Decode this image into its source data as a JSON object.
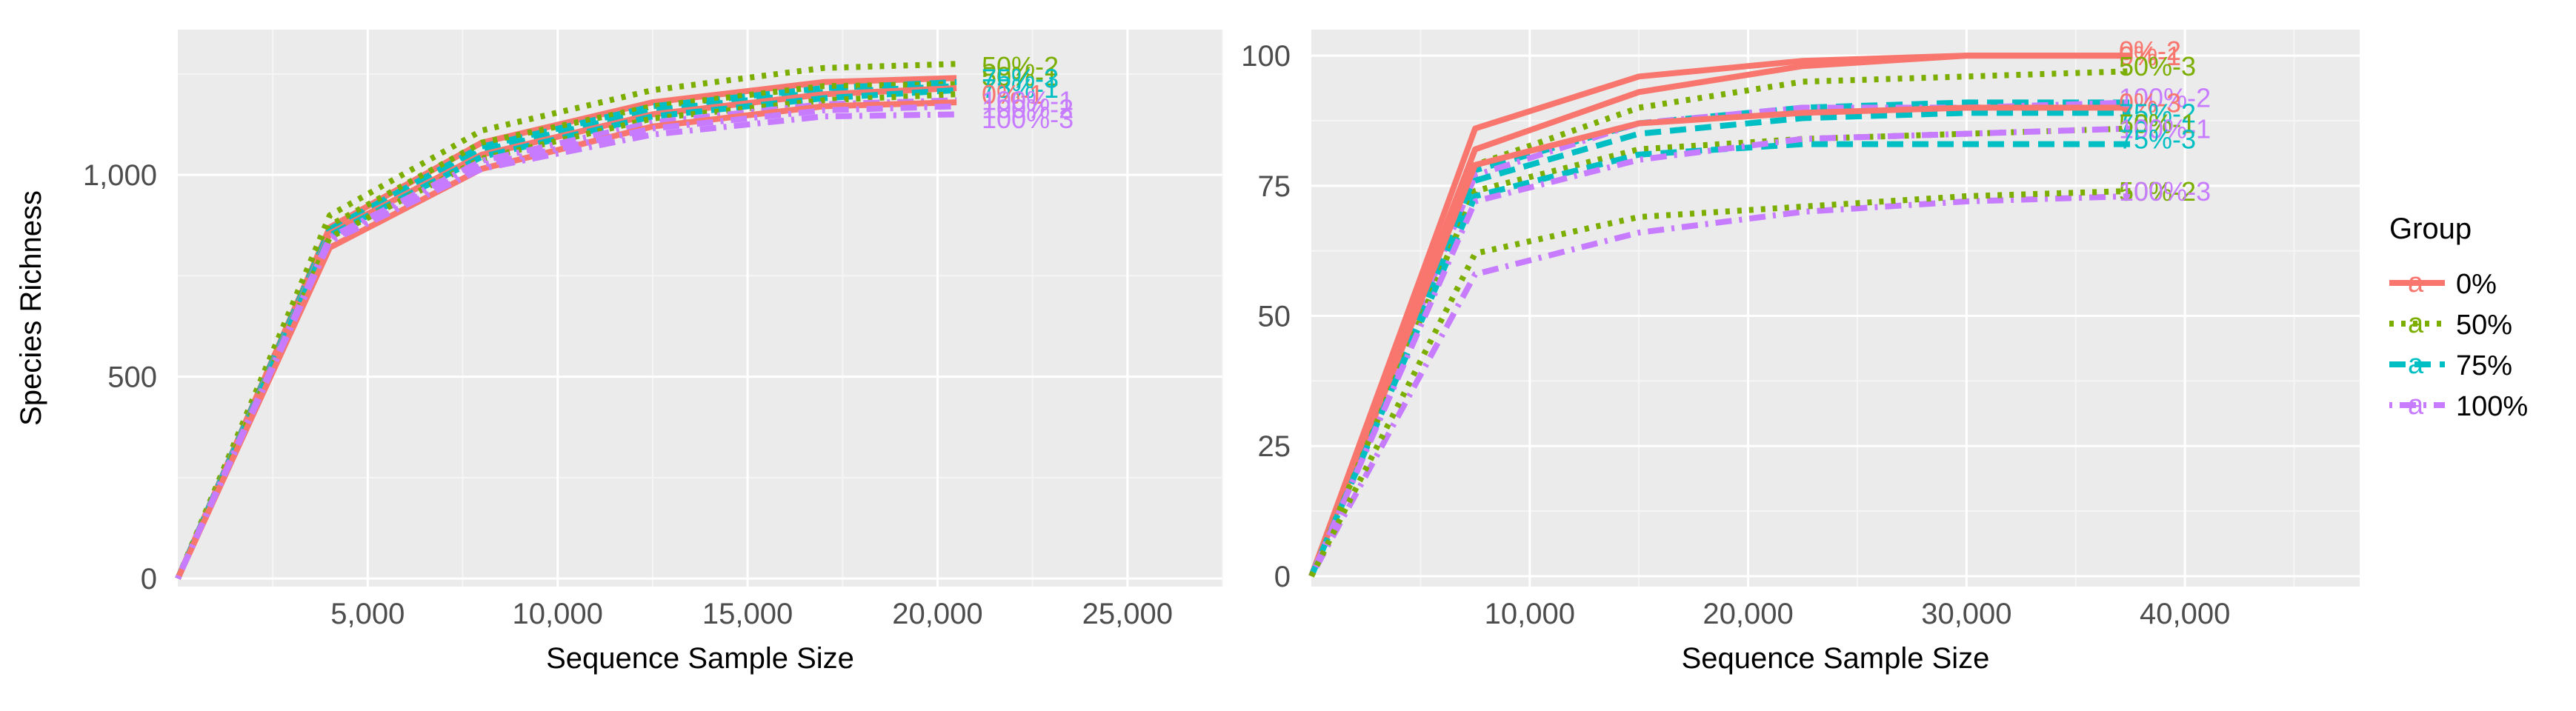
{
  "chart_data": [
    {
      "type": "line",
      "title": "",
      "xlabel": "Sequence Sample Size",
      "ylabel": "Species Richness",
      "xlim": [
        0,
        27500
      ],
      "ylim": [
        -20,
        1360
      ],
      "xticks": [
        5000,
        10000,
        15000,
        20000,
        25000
      ],
      "xtick_labels": [
        "5,000",
        "10,000",
        "15,000",
        "20,000",
        "25,000"
      ],
      "yticks": [
        0,
        500,
        1000
      ],
      "ytick_labels": [
        "0",
        "500",
        "1,000"
      ],
      "grid": true,
      "series": [
        {
          "name": "50%-2",
          "group": "50%",
          "x": [
            0,
            4000,
            8000,
            12500,
            17000,
            20500
          ],
          "y": [
            0,
            900,
            1110,
            1210,
            1265,
            1275
          ]
        },
        {
          "name": "0%-1",
          "group": "0%",
          "x": [
            0,
            4000,
            8000,
            12500,
            17000,
            20500
          ],
          "y": [
            0,
            870,
            1080,
            1180,
            1230,
            1240
          ]
        },
        {
          "name": "75%-2",
          "group": "75%",
          "x": [
            0,
            4000,
            8000,
            12500,
            17000,
            20500
          ],
          "y": [
            0,
            865,
            1070,
            1170,
            1215,
            1230
          ]
        },
        {
          "name": "50%-1",
          "group": "50%",
          "x": [
            0,
            4000,
            8000,
            12500,
            17000,
            20500
          ],
          "y": [
            0,
            875,
            1080,
            1170,
            1220,
            1225
          ]
        },
        {
          "name": "75%-3",
          "group": "75%",
          "x": [
            0,
            4000,
            8000,
            12500,
            17000,
            20500
          ],
          "y": [
            0,
            860,
            1060,
            1160,
            1205,
            1220
          ]
        },
        {
          "name": "0%-3",
          "group": "0%",
          "x": [
            0,
            4000,
            8000,
            12500,
            17000,
            20500
          ],
          "y": [
            0,
            855,
            1050,
            1150,
            1200,
            1215
          ]
        },
        {
          "name": "75%-1",
          "group": "75%",
          "x": [
            0,
            4000,
            8000,
            12500,
            17000,
            20500
          ],
          "y": [
            0,
            850,
            1045,
            1145,
            1190,
            1210
          ]
        },
        {
          "name": "50%-3",
          "group": "50%",
          "x": [
            0,
            4000,
            8000,
            12500,
            17000,
            20500
          ],
          "y": [
            0,
            845,
            1040,
            1140,
            1185,
            1200
          ]
        },
        {
          "name": "100%-1",
          "group": "100%",
          "x": [
            0,
            4000,
            8000,
            12500,
            17000,
            20500
          ],
          "y": [
            0,
            845,
            1035,
            1130,
            1175,
            1185
          ]
        },
        {
          "name": "0%-2",
          "group": "0%",
          "x": [
            0,
            4000,
            8000,
            12500,
            17000,
            20500
          ],
          "y": [
            0,
            820,
            1015,
            1120,
            1170,
            1180
          ]
        },
        {
          "name": "100%-2",
          "group": "100%",
          "x": [
            0,
            4000,
            8000,
            12500,
            17000,
            20500
          ],
          "y": [
            0,
            840,
            1025,
            1115,
            1160,
            1170
          ]
        },
        {
          "name": "100%-3",
          "group": "100%",
          "x": [
            0,
            4000,
            8000,
            12500,
            17000,
            20500
          ],
          "y": [
            0,
            835,
            1015,
            1100,
            1145,
            1150
          ]
        }
      ],
      "end_labels": [
        {
          "text": "50%-2",
          "group": "50%",
          "y": 1270
        },
        {
          "text": "50%-1",
          "group": "50%",
          "y": 1245
        },
        {
          "text": "75%-3",
          "group": "75%",
          "y": 1240
        },
        {
          "text": "75%-1",
          "group": "75%",
          "y": 1215
        },
        {
          "text": "0%-1",
          "group": "0%",
          "y": 1200
        },
        {
          "text": "100%-1",
          "group": "100%",
          "y": 1185
        },
        {
          "text": "100%-2",
          "group": "100%",
          "y": 1165
        },
        {
          "text": "100%-3",
          "group": "100%",
          "y": 1140
        }
      ]
    },
    {
      "type": "line",
      "title": "",
      "xlabel": "Sequence Sample Size",
      "ylabel": "",
      "xlim": [
        0,
        48000
      ],
      "ylim": [
        -2,
        105
      ],
      "xticks": [
        10000,
        20000,
        30000,
        40000
      ],
      "xtick_labels": [
        "10,000",
        "20,000",
        "30,000",
        "40,000"
      ],
      "yticks": [
        0,
        25,
        50,
        75,
        100
      ],
      "ytick_labels": [
        "0",
        "25",
        "50",
        "75",
        "100"
      ],
      "grid": true,
      "series": [
        {
          "name": "0%-2",
          "group": "0%",
          "x": [
            0,
            7500,
            15000,
            22500,
            30000,
            37500
          ],
          "y": [
            0,
            86,
            96,
            99,
            100,
            100
          ]
        },
        {
          "name": "0%-1",
          "group": "0%",
          "x": [
            0,
            7500,
            15000,
            22500,
            30000,
            37500
          ],
          "y": [
            0,
            82,
            93,
            98,
            100,
            100
          ]
        },
        {
          "name": "50%-3",
          "group": "50%",
          "x": [
            0,
            7500,
            15000,
            22500,
            30000,
            37500
          ],
          "y": [
            0,
            79,
            90,
            95,
            96,
            97
          ]
        },
        {
          "name": "75%-2",
          "group": "75%",
          "x": [
            0,
            7500,
            15000,
            22500,
            30000,
            37500
          ],
          "y": [
            0,
            78,
            87,
            90,
            91,
            91
          ]
        },
        {
          "name": "100%-2",
          "group": "100%",
          "x": [
            0,
            7500,
            15000,
            22500,
            30000,
            37500
          ],
          "y": [
            0,
            77,
            87,
            90,
            90,
            91
          ]
        },
        {
          "name": "75%-1",
          "group": "75%",
          "x": [
            0,
            7500,
            15000,
            22500,
            30000,
            37500
          ],
          "y": [
            0,
            76,
            85,
            88,
            89,
            89
          ]
        },
        {
          "name": "0%-3",
          "group": "0%",
          "x": [
            0,
            7500,
            15000,
            22500,
            30000,
            37500
          ],
          "y": [
            0,
            79,
            87,
            89,
            90,
            90
          ]
        },
        {
          "name": "50%-1",
          "group": "50%",
          "x": [
            0,
            7500,
            15000,
            22500,
            30000,
            37500
          ],
          "y": [
            0,
            74,
            82,
            84,
            85,
            86
          ]
        },
        {
          "name": "75%-3",
          "group": "75%",
          "x": [
            0,
            7500,
            15000,
            22500,
            30000,
            37500
          ],
          "y": [
            0,
            73,
            81,
            83,
            83,
            83
          ]
        },
        {
          "name": "100%-1",
          "group": "100%",
          "x": [
            0,
            7500,
            15000,
            22500,
            30000,
            37500
          ],
          "y": [
            0,
            72,
            80,
            84,
            85,
            86
          ]
        },
        {
          "name": "100%-3",
          "group": "100%",
          "x": [
            0,
            7500,
            15000,
            22500,
            30000,
            37500
          ],
          "y": [
            0,
            58,
            66,
            70,
            72,
            73
          ]
        },
        {
          "name": "50%-2",
          "group": "50%",
          "x": [
            0,
            7500,
            15000,
            22500,
            30000,
            37500
          ],
          "y": [
            0,
            62,
            69,
            71,
            73,
            74
          ]
        }
      ],
      "end_labels": [
        {
          "text": "0%-2",
          "group": "0%",
          "y": 101
        },
        {
          "text": "0%-1",
          "group": "0%",
          "y": 100
        },
        {
          "text": "50%-3",
          "group": "50%",
          "y": 98
        },
        {
          "text": "100%-2",
          "group": "100%",
          "y": 92
        },
        {
          "text": "0%-3",
          "group": "0%",
          "y": 91
        },
        {
          "text": "75%-2",
          "group": "75%",
          "y": 89
        },
        {
          "text": "75%-1",
          "group": "75%",
          "y": 87
        },
        {
          "text": "50%-1",
          "group": "50%",
          "y": 87
        },
        {
          "text": "100%-1",
          "group": "100%",
          "y": 86
        },
        {
          "text": "75%-3",
          "group": "75%",
          "y": 84
        },
        {
          "text": "50%-2",
          "group": "50%",
          "y": 74
        },
        {
          "text": "100%-3",
          "group": "100%",
          "y": 74
        }
      ]
    }
  ],
  "legend": {
    "title": "Group",
    "placement": "right",
    "key_letter": "a",
    "items": [
      {
        "label": "0%",
        "color": "#F8766D",
        "dash": "solid"
      },
      {
        "label": "50%",
        "color": "#7CAE00",
        "dash": "dotted"
      },
      {
        "label": "75%",
        "color": "#00BFC4",
        "dash": "dashed"
      },
      {
        "label": "100%",
        "color": "#C77CFF",
        "dash": "dashdot"
      }
    ]
  },
  "colors": {
    "panel_background": "#EBEBEB",
    "grid_major": "#FFFFFF",
    "grid_minor": "#F5F5F5",
    "0%": "#F8766D",
    "50%": "#7CAE00",
    "75%": "#00BFC4",
    "100%": "#C77CFF"
  }
}
